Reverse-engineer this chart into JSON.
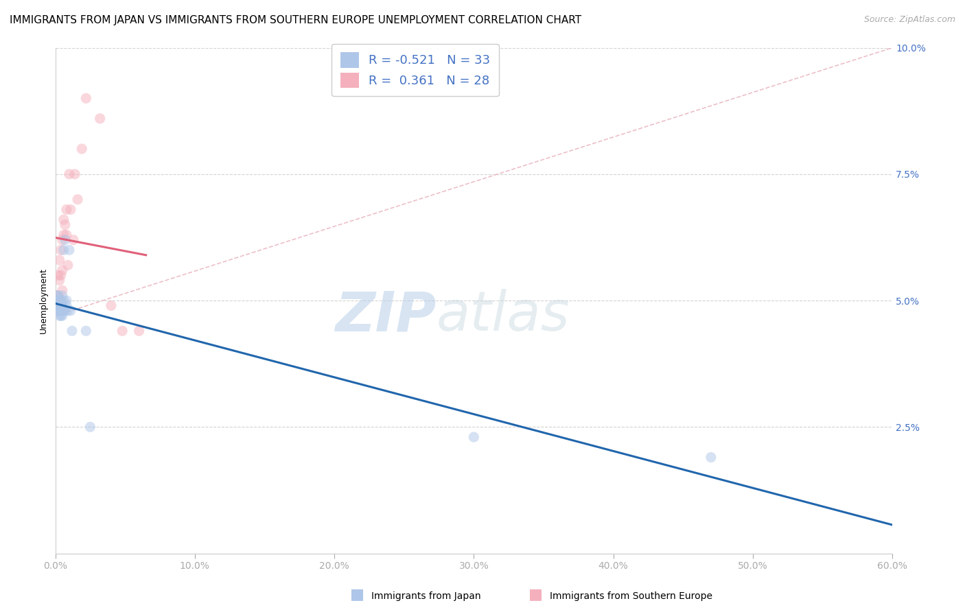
{
  "title": "IMMIGRANTS FROM JAPAN VS IMMIGRANTS FROM SOUTHERN EUROPE UNEMPLOYMENT CORRELATION CHART",
  "source": "Source: ZipAtlas.com",
  "ylabel": "Unemployment",
  "watermark_zip": "ZIP",
  "watermark_atlas": "atlas",
  "legend_r_japan": "-0.521",
  "legend_n_japan": "33",
  "legend_r_southern": "0.361",
  "legend_n_southern": "28",
  "xlim": [
    0.0,
    0.6
  ],
  "ylim": [
    0.0,
    0.1
  ],
  "xticks": [
    0.0,
    0.1,
    0.2,
    0.3,
    0.4,
    0.5,
    0.6
  ],
  "yticks": [
    0.0,
    0.025,
    0.05,
    0.075,
    0.1
  ],
  "ytick_labels": [
    "",
    "2.5%",
    "5.0%",
    "7.5%",
    "10.0%"
  ],
  "xtick_labels": [
    "0.0%",
    "10.0%",
    "20.0%",
    "30.0%",
    "40.0%",
    "50.0%",
    "60.0%"
  ],
  "japan_color": "#aec6e8",
  "southern_color": "#f4b0bc",
  "japan_line_color": "#2166ac",
  "southern_line_color": "#e0607a",
  "dashed_line_color": "#e8b0ba",
  "japan_x": [
    0.001,
    0.001,
    0.001,
    0.002,
    0.002,
    0.002,
    0.002,
    0.003,
    0.003,
    0.003,
    0.003,
    0.004,
    0.004,
    0.004,
    0.004,
    0.005,
    0.005,
    0.005,
    0.006,
    0.006,
    0.006,
    0.007,
    0.007,
    0.008,
    0.008,
    0.009,
    0.01,
    0.011,
    0.012,
    0.022,
    0.025,
    0.3,
    0.47
  ],
  "japan_y": [
    0.049,
    0.05,
    0.051,
    0.048,
    0.049,
    0.05,
    0.051,
    0.047,
    0.048,
    0.049,
    0.05,
    0.047,
    0.048,
    0.049,
    0.05,
    0.047,
    0.049,
    0.051,
    0.048,
    0.05,
    0.06,
    0.048,
    0.062,
    0.049,
    0.05,
    0.048,
    0.06,
    0.048,
    0.044,
    0.044,
    0.025,
    0.023,
    0.019
  ],
  "southern_x": [
    0.001,
    0.002,
    0.002,
    0.003,
    0.003,
    0.003,
    0.004,
    0.004,
    0.005,
    0.005,
    0.005,
    0.006,
    0.006,
    0.007,
    0.008,
    0.008,
    0.009,
    0.01,
    0.011,
    0.013,
    0.014,
    0.016,
    0.019,
    0.022,
    0.032,
    0.04,
    0.048,
    0.06
  ],
  "southern_y": [
    0.051,
    0.051,
    0.055,
    0.05,
    0.054,
    0.058,
    0.055,
    0.06,
    0.052,
    0.056,
    0.062,
    0.063,
    0.066,
    0.065,
    0.063,
    0.068,
    0.057,
    0.075,
    0.068,
    0.062,
    0.075,
    0.07,
    0.08,
    0.09,
    0.086,
    0.049,
    0.044,
    0.044
  ],
  "marker_size": 120,
  "marker_alpha": 0.5,
  "background_color": "#ffffff",
  "grid_color": "#d3d3d3",
  "title_fontsize": 11,
  "tick_fontsize": 10,
  "tick_color": "#4472c4",
  "ylabel_fontsize": 9
}
